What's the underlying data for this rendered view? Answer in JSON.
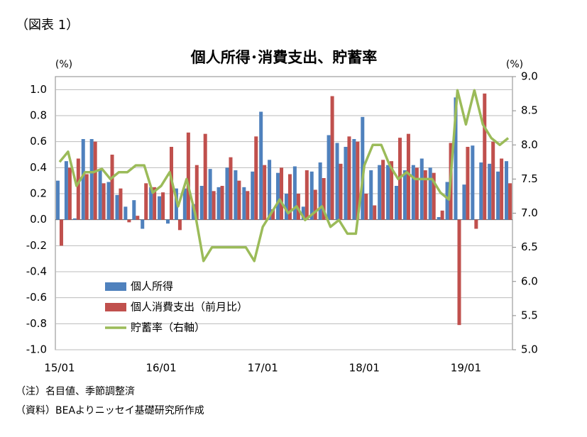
{
  "chart_data": {
    "type": "bar-line",
    "label": "（図表 1）",
    "title": "個人所得･消費支出、貯蓄率",
    "y_unit": "(%)",
    "y2_unit": "(%)",
    "notes": [
      "（注）名目値、季節調整済",
      "（資料）BEAよりニッセイ基礎研究所作成"
    ],
    "categories": [
      "15/01",
      null,
      null,
      null,
      null,
      null,
      null,
      null,
      null,
      null,
      null,
      null,
      "16/01",
      null,
      null,
      null,
      null,
      null,
      null,
      null,
      null,
      null,
      null,
      null,
      "17/01",
      null,
      null,
      null,
      null,
      null,
      null,
      null,
      null,
      null,
      null,
      null,
      "18/01",
      null,
      null,
      null,
      null,
      null,
      null,
      null,
      null,
      null,
      null,
      null,
      "19/01",
      null,
      null,
      null,
      null,
      null
    ],
    "series": [
      {
        "name": "個人所得",
        "color": "#4f81bd",
        "type": "bar",
        "values": [
          0.3,
          0.45,
          0.01,
          0.62,
          0.62,
          0.38,
          0.29,
          0.19,
          0.1,
          0.15,
          -0.07,
          0.25,
          0.18,
          -0.03,
          0.24,
          0.24,
          0.12,
          0.26,
          0.39,
          0.25,
          0.4,
          0.38,
          0.25,
          0.37,
          0.83,
          0.46,
          0.36,
          0.2,
          0.41,
          0.1,
          0.37,
          0.44,
          0.65,
          0.59,
          0.56,
          0.62,
          0.79,
          0.38,
          0.42,
          0.42,
          0.26,
          0.38,
          0.42,
          0.47,
          0.4,
          0.02,
          0.29,
          0.94,
          0.27,
          0.57,
          0.44,
          0.43,
          0.37,
          0.45
        ]
      },
      {
        "name": "個人消費支出（前月比）",
        "color": "#c0504d",
        "type": "bar",
        "values": [
          -0.2,
          0.4,
          0.47,
          0.35,
          0.6,
          0.28,
          0.5,
          0.24,
          -0.02,
          0.03,
          0.28,
          0.25,
          0.21,
          0.56,
          -0.08,
          0.67,
          0.42,
          0.66,
          0.22,
          0.26,
          0.48,
          0.3,
          0.22,
          0.64,
          0.42,
          0.08,
          0.4,
          0.35,
          0.2,
          0.38,
          0.23,
          0.32,
          0.95,
          0.43,
          0.64,
          0.6,
          0.2,
          0.11,
          0.46,
          0.45,
          0.63,
          0.66,
          0.4,
          0.38,
          0.36,
          0.07,
          0.59,
          -0.81,
          0.56,
          -0.07,
          0.97,
          0.6,
          0.47,
          0.28
        ]
      },
      {
        "name": "貯蓄率（右軸）",
        "color": "#9bbb59",
        "type": "line",
        "axis": "y2",
        "values": [
          7.75,
          7.9,
          7.4,
          7.6,
          7.6,
          7.65,
          7.5,
          7.6,
          7.6,
          7.7,
          7.7,
          7.3,
          7.4,
          7.6,
          7.1,
          7.5,
          7.0,
          6.3,
          6.5,
          6.5,
          6.5,
          6.5,
          6.5,
          6.3,
          6.8,
          7.0,
          7.2,
          7.0,
          7.1,
          6.9,
          7.0,
          7.1,
          6.8,
          6.9,
          6.7,
          6.7,
          7.7,
          8.0,
          8.0,
          7.7,
          7.5,
          7.6,
          7.5,
          7.5,
          7.5,
          7.3,
          7.2,
          8.8,
          8.3,
          8.8,
          8.3,
          8.1,
          8.0,
          8.1
        ]
      }
    ],
    "ylim": [
      -1.0,
      1.1
    ],
    "yticks": [
      {
        "value": -1.0,
        "label": "-1.0"
      },
      {
        "value": -0.8,
        "label": "-0.8"
      },
      {
        "value": -0.6,
        "label": "-0.6"
      },
      {
        "value": -0.4,
        "label": "-0.4"
      },
      {
        "value": -0.2,
        "label": "-0.2"
      },
      {
        "value": 0.0,
        "label": "0.0"
      },
      {
        "value": 0.2,
        "label": "0.2"
      },
      {
        "value": 0.4,
        "label": "0.4"
      },
      {
        "value": 0.6,
        "label": "0.6"
      },
      {
        "value": 0.8,
        "label": "0.8"
      },
      {
        "value": 1.0,
        "label": "1.0"
      }
    ],
    "y2lim": [
      5.0,
      9.0
    ],
    "y2ticks": [
      {
        "value": 5.0,
        "label": "5.0"
      },
      {
        "value": 5.5,
        "label": "5.5"
      },
      {
        "value": 6.0,
        "label": "6.0"
      },
      {
        "value": 6.5,
        "label": "6.5"
      },
      {
        "value": 7.0,
        "label": "7.0"
      },
      {
        "value": 7.5,
        "label": "7.5"
      },
      {
        "value": 8.0,
        "label": "8.0"
      },
      {
        "value": 8.5,
        "label": "8.5"
      },
      {
        "value": 9.0,
        "label": "9.0"
      }
    ],
    "grid": true,
    "legend": "lower-left"
  }
}
